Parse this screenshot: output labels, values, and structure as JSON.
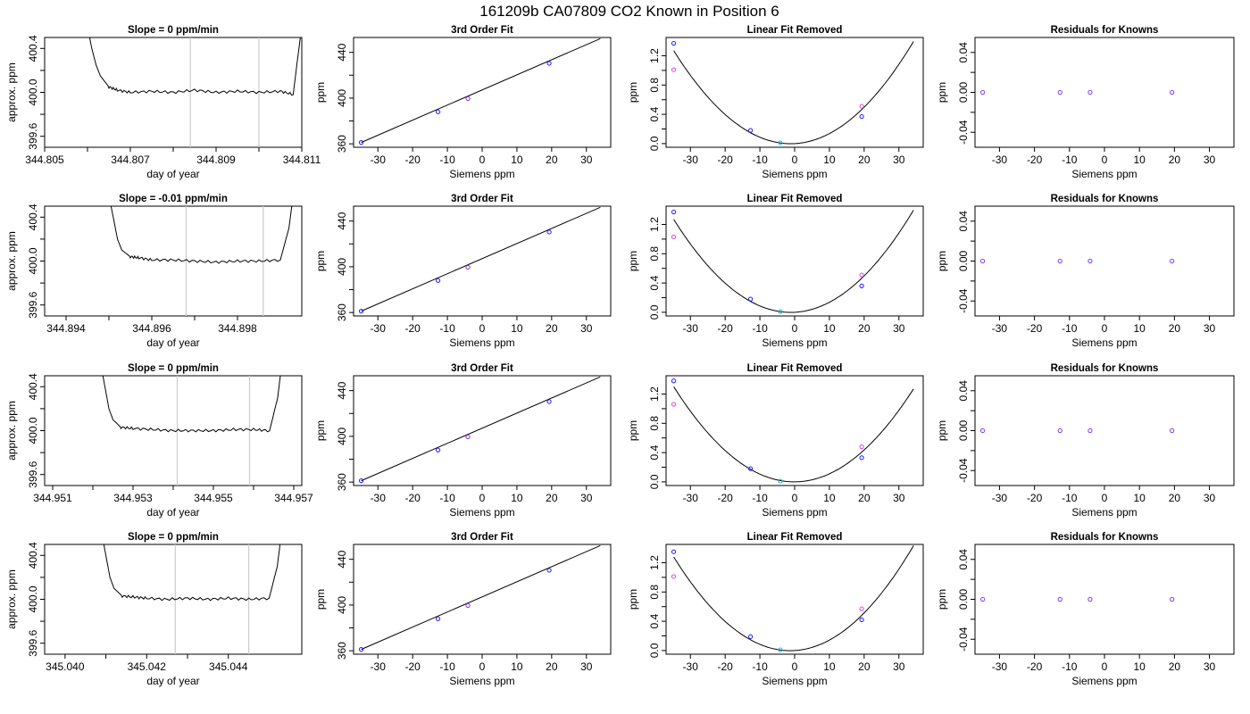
{
  "figure": {
    "title": "161209b     CA07809   CO2 Known in Position  6"
  },
  "chart_data": [
    {
      "type": "line",
      "row": 0,
      "title": "Slope =  0  ppm/min",
      "xlabel": "day of year",
      "ylabel": "approx. ppm",
      "xlim": [
        344.805,
        344.811
      ],
      "ylim": [
        399.5,
        400.5
      ],
      "xticks": [
        "344.805",
        "344.807",
        "344.809",
        "344.811"
      ],
      "yticks": [
        "399.6",
        "400.0",
        "400.4"
      ],
      "markers": [
        344.8084,
        344.81
      ],
      "series": [
        {
          "x": [
            344.806,
            344.8061,
            344.8062,
            344.8063,
            344.8065,
            344.8067,
            344.807,
            344.8075,
            344.808,
            344.8085,
            344.809,
            344.8095,
            344.81,
            344.8105,
            344.8108,
            344.8109,
            344.811
          ],
          "y": [
            400.6,
            400.4,
            400.25,
            400.15,
            400.05,
            400.02,
            400.0,
            400.01,
            400.0,
            400.02,
            400.0,
            400.01,
            400.0,
            400.01,
            399.98,
            400.3,
            400.6
          ]
        }
      ]
    },
    {
      "type": "scatter",
      "row": 0,
      "title": "3rd Order Fit",
      "xlabel": "Siemens ppm",
      "ylabel": "ppm",
      "xlim": [
        -37,
        37
      ],
      "ylim": [
        357,
        453
      ],
      "xticks": [
        "-30",
        "-20",
        "-10",
        "0",
        "10",
        "20",
        "30"
      ],
      "yticks": [
        "360",
        "400",
        "440"
      ],
      "points": [
        {
          "x": -34.8,
          "y": 361.2,
          "c": "blue"
        },
        {
          "x": -12.7,
          "y": 388.0,
          "c": "blue"
        },
        {
          "x": -4.1,
          "y": 399.6,
          "c": "purple"
        },
        {
          "x": 19.3,
          "y": 430.4,
          "c": "blue"
        }
      ],
      "fit": [
        [
          -34.8,
          361.2
        ],
        [
          34,
          452
        ]
      ]
    },
    {
      "type": "scatter",
      "row": 0,
      "title": "Linear Fit Removed",
      "xlabel": "Siemens ppm",
      "ylabel": "ppm",
      "xlim": [
        -37,
        37
      ],
      "ylim": [
        -0.05,
        1.45
      ],
      "xticks": [
        "-30",
        "-20",
        "-10",
        "0",
        "10",
        "20",
        "30"
      ],
      "yticks": [
        "0.0",
        "0.4",
        "0.8",
        "1.2"
      ],
      "points": [
        {
          "x": -34.8,
          "y": 1.37,
          "c": "blue"
        },
        {
          "x": -34.8,
          "y": 1.01,
          "c": "magenta"
        },
        {
          "x": -12.7,
          "y": 0.18,
          "c": "blue"
        },
        {
          "x": -4.1,
          "y": 0.01,
          "c": "cyan"
        },
        {
          "x": 19.3,
          "y": 0.37,
          "c": "blue"
        },
        {
          "x": 19.3,
          "y": 0.51,
          "c": "magenta"
        }
      ],
      "fit": {
        "a": 0.00112,
        "b": 0.0025,
        "c": 0.0
      }
    },
    {
      "type": "scatter",
      "row": 0,
      "title": "Residuals for Knowns",
      "xlabel": "Siemens ppm",
      "ylabel": "ppm",
      "xlim": [
        -37,
        37
      ],
      "ylim": [
        -0.055,
        0.055
      ],
      "xticks": [
        "-30",
        "-20",
        "-10",
        "0",
        "10",
        "20",
        "30"
      ],
      "yticks": [
        "-0.04",
        "0.00",
        "0.04"
      ],
      "points": [
        {
          "x": -34.8,
          "y": 0
        },
        {
          "x": -12.7,
          "y": 0
        },
        {
          "x": -4.1,
          "y": 0
        },
        {
          "x": 19.3,
          "y": 0
        }
      ]
    },
    {
      "type": "line",
      "row": 1,
      "title": "Slope =  -0.01  ppm/min",
      "xlabel": "day of year",
      "ylabel": "approx. ppm",
      "xlim": [
        344.8935,
        344.8995
      ],
      "ylim": [
        399.5,
        400.5
      ],
      "xticks": [
        "344.894",
        "344.896",
        "344.898"
      ],
      "yticks": [
        "399.6",
        "400.0",
        "400.4"
      ],
      "markers": [
        344.8968,
        344.8986
      ],
      "series": [
        {
          "x": [
            344.895,
            344.8951,
            344.8952,
            344.8953,
            344.8955,
            344.8957,
            344.896,
            344.8965,
            344.897,
            344.8975,
            344.898,
            344.8985,
            344.899,
            344.8992,
            344.8993
          ],
          "y": [
            400.6,
            400.4,
            400.2,
            400.1,
            400.04,
            400.03,
            400.01,
            400.01,
            400.0,
            399.99,
            400.0,
            400.0,
            400.01,
            400.3,
            400.6
          ]
        }
      ]
    },
    {
      "type": "scatter",
      "row": 1,
      "title": "3rd Order Fit",
      "xlabel": "Siemens ppm",
      "ylabel": "ppm",
      "xlim": [
        -37,
        37
      ],
      "ylim": [
        357,
        453
      ],
      "xticks": [
        "-30",
        "-20",
        "-10",
        "0",
        "10",
        "20",
        "30"
      ],
      "yticks": [
        "360",
        "400",
        "440"
      ],
      "points": [
        {
          "x": -34.8,
          "y": 361.2,
          "c": "blue"
        },
        {
          "x": -12.7,
          "y": 388.0,
          "c": "blue"
        },
        {
          "x": -4.1,
          "y": 399.6,
          "c": "purple"
        },
        {
          "x": 19.3,
          "y": 430.4,
          "c": "blue"
        }
      ],
      "fit": [
        [
          -34.8,
          361.2
        ],
        [
          34,
          452
        ]
      ]
    },
    {
      "type": "scatter",
      "row": 1,
      "title": "Linear Fit Removed",
      "xlabel": "Siemens ppm",
      "ylabel": "ppm",
      "xlim": [
        -37,
        37
      ],
      "ylim": [
        -0.05,
        1.45
      ],
      "xticks": [
        "-30",
        "-20",
        "-10",
        "0",
        "10",
        "20",
        "30"
      ],
      "yticks": [
        "0.0",
        "0.4",
        "0.8",
        "1.2"
      ],
      "points": [
        {
          "x": -34.8,
          "y": 1.37,
          "c": "blue"
        },
        {
          "x": -34.8,
          "y": 1.03,
          "c": "magenta"
        },
        {
          "x": -12.7,
          "y": 0.18,
          "c": "blue"
        },
        {
          "x": -4.1,
          "y": 0.01,
          "c": "cyan"
        },
        {
          "x": 19.3,
          "y": 0.36,
          "c": "blue"
        },
        {
          "x": 19.3,
          "y": 0.51,
          "c": "magenta"
        }
      ],
      "fit": {
        "a": 0.00112,
        "b": 0.0025,
        "c": 0.0
      }
    },
    {
      "type": "scatter",
      "row": 1,
      "title": "Residuals for Knowns",
      "xlabel": "Siemens ppm",
      "ylabel": "ppm",
      "xlim": [
        -37,
        37
      ],
      "ylim": [
        -0.055,
        0.055
      ],
      "xticks": [
        "-30",
        "-20",
        "-10",
        "0",
        "10",
        "20",
        "30"
      ],
      "yticks": [
        "-0.04",
        "0.00",
        "0.04"
      ],
      "points": [
        {
          "x": -34.8,
          "y": 0
        },
        {
          "x": -12.7,
          "y": 0
        },
        {
          "x": -4.1,
          "y": 0
        },
        {
          "x": 19.3,
          "y": 0
        }
      ]
    },
    {
      "type": "line",
      "row": 2,
      "title": "Slope =  0  ppm/min",
      "xlabel": "day of year",
      "ylabel": "approx. ppm",
      "xlim": [
        344.9508,
        344.9572
      ],
      "ylim": [
        399.5,
        400.5
      ],
      "xticks": [
        "344.951",
        "344.953",
        "344.955",
        "344.957"
      ],
      "yticks": [
        "399.6",
        "400.0",
        "400.4"
      ],
      "markers": [
        344.9541,
        344.9559
      ],
      "series": [
        {
          "x": [
            344.9522,
            344.9523,
            344.9524,
            344.9525,
            344.9527,
            344.953,
            344.9535,
            344.954,
            344.9545,
            344.955,
            344.9555,
            344.956,
            344.9564,
            344.9566,
            344.9567
          ],
          "y": [
            400.6,
            400.4,
            400.2,
            400.1,
            400.03,
            400.02,
            400.01,
            400.0,
            400.0,
            400.0,
            400.01,
            400.01,
            400.0,
            400.3,
            400.6
          ]
        }
      ]
    },
    {
      "type": "scatter",
      "row": 2,
      "title": "3rd Order Fit",
      "xlabel": "Siemens ppm",
      "ylabel": "ppm",
      "xlim": [
        -37,
        37
      ],
      "ylim": [
        357,
        453
      ],
      "xticks": [
        "-30",
        "-20",
        "-10",
        "0",
        "10",
        "20",
        "30"
      ],
      "yticks": [
        "360",
        "400",
        "440"
      ],
      "points": [
        {
          "x": -34.8,
          "y": 361.2,
          "c": "blue"
        },
        {
          "x": -12.7,
          "y": 388.0,
          "c": "blue"
        },
        {
          "x": -4.1,
          "y": 399.6,
          "c": "purple"
        },
        {
          "x": 19.3,
          "y": 430.4,
          "c": "blue"
        }
      ],
      "fit": [
        [
          -34.8,
          361.2
        ],
        [
          34,
          452
        ]
      ]
    },
    {
      "type": "scatter",
      "row": 2,
      "title": "Linear Fit Removed",
      "xlabel": "Siemens ppm",
      "ylabel": "ppm",
      "xlim": [
        -37,
        37
      ],
      "ylim": [
        -0.05,
        1.45
      ],
      "xticks": [
        "-30",
        "-20",
        "-10",
        "0",
        "10",
        "20",
        "30"
      ],
      "yticks": [
        "0.0",
        "0.4",
        "0.8",
        "1.2"
      ],
      "points": [
        {
          "x": -34.8,
          "y": 1.38,
          "c": "blue"
        },
        {
          "x": -34.8,
          "y": 1.06,
          "c": "magenta"
        },
        {
          "x": -12.7,
          "y": 0.18,
          "c": "blue"
        },
        {
          "x": -4.1,
          "y": 0.01,
          "c": "cyan"
        },
        {
          "x": 19.3,
          "y": 0.33,
          "c": "blue"
        },
        {
          "x": 19.3,
          "y": 0.48,
          "c": "magenta"
        }
      ],
      "fit": {
        "a": 0.00108,
        "b": 0.0002,
        "c": 0.0
      }
    },
    {
      "type": "scatter",
      "row": 2,
      "title": "Residuals for Knowns",
      "xlabel": "Siemens ppm",
      "ylabel": "ppm",
      "xlim": [
        -37,
        37
      ],
      "ylim": [
        -0.055,
        0.055
      ],
      "xticks": [
        "-30",
        "-20",
        "-10",
        "0",
        "10",
        "20",
        "30"
      ],
      "yticks": [
        "-0.04",
        "0.00",
        "0.04"
      ],
      "points": [
        {
          "x": -34.8,
          "y": 0
        },
        {
          "x": -12.7,
          "y": 0
        },
        {
          "x": -4.1,
          "y": 0
        },
        {
          "x": 19.3,
          "y": 0
        }
      ]
    },
    {
      "type": "line",
      "row": 3,
      "title": "Slope =  0  ppm/min",
      "xlabel": "day of year",
      "ylabel": "approx. ppm",
      "xlim": [
        345.0395,
        345.0458
      ],
      "ylim": [
        399.5,
        400.5
      ],
      "xticks": [
        "345.040",
        "345.042",
        "345.044"
      ],
      "yticks": [
        "399.6",
        "400.0",
        "400.4"
      ],
      "markers": [
        345.0427,
        345.0445
      ],
      "series": [
        {
          "x": [
            345.0409,
            345.041,
            345.0411,
            345.0412,
            345.0414,
            345.0417,
            345.042,
            345.0425,
            345.043,
            345.0435,
            345.044,
            345.0445,
            345.045,
            345.0452,
            345.0453
          ],
          "y": [
            400.6,
            400.4,
            400.2,
            400.1,
            400.03,
            400.02,
            400.01,
            400.0,
            400.01,
            400.0,
            400.01,
            400.0,
            400.01,
            400.3,
            400.6
          ]
        }
      ]
    },
    {
      "type": "scatter",
      "row": 3,
      "title": "3rd Order Fit",
      "xlabel": "Siemens ppm",
      "ylabel": "ppm",
      "xlim": [
        -37,
        37
      ],
      "ylim": [
        357,
        453
      ],
      "xticks": [
        "-30",
        "-20",
        "-10",
        "0",
        "10",
        "20",
        "30"
      ],
      "yticks": [
        "360",
        "400",
        "440"
      ],
      "points": [
        {
          "x": -34.8,
          "y": 361.2,
          "c": "blue"
        },
        {
          "x": -12.7,
          "y": 388.0,
          "c": "blue"
        },
        {
          "x": -4.1,
          "y": 399.6,
          "c": "purple"
        },
        {
          "x": 19.3,
          "y": 430.4,
          "c": "blue"
        }
      ],
      "fit": [
        [
          -34.8,
          361.2
        ],
        [
          34,
          452
        ]
      ]
    },
    {
      "type": "scatter",
      "row": 3,
      "title": "Linear Fit Removed",
      "xlabel": "Siemens ppm",
      "ylabel": "ppm",
      "xlim": [
        -37,
        37
      ],
      "ylim": [
        -0.05,
        1.45
      ],
      "xticks": [
        "-30",
        "-20",
        "-10",
        "0",
        "10",
        "20",
        "30"
      ],
      "yticks": [
        "0.0",
        "0.4",
        "0.8",
        "1.2"
      ],
      "points": [
        {
          "x": -34.8,
          "y": 1.35,
          "c": "blue"
        },
        {
          "x": -34.8,
          "y": 1.01,
          "c": "magenta"
        },
        {
          "x": -12.7,
          "y": 0.19,
          "c": "blue"
        },
        {
          "x": -4.1,
          "y": 0.01,
          "c": "cyan"
        },
        {
          "x": 19.3,
          "y": 0.42,
          "c": "blue"
        },
        {
          "x": 19.3,
          "y": 0.57,
          "c": "magenta"
        }
      ],
      "fit": {
        "a": 0.00114,
        "b": 0.0029,
        "c": 0.0
      }
    },
    {
      "type": "scatter",
      "row": 3,
      "title": "Residuals for Knowns",
      "xlabel": "Siemens ppm",
      "ylabel": "ppm",
      "xlim": [
        -37,
        37
      ],
      "ylim": [
        -0.055,
        0.055
      ],
      "xticks": [
        "-30",
        "-20",
        "-10",
        "0",
        "10",
        "20",
        "30"
      ],
      "yticks": [
        "-0.04",
        "0.00",
        "0.04"
      ],
      "points": [
        {
          "x": -34.8,
          "y": 0
        },
        {
          "x": -12.7,
          "y": 0
        },
        {
          "x": -4.1,
          "y": 0
        },
        {
          "x": 19.3,
          "y": 0
        }
      ]
    }
  ],
  "colors": {
    "blue": "#1a1aff",
    "magenta": "#e040e0",
    "cyan": "#19b4d8",
    "purple": "#8a2be2"
  }
}
